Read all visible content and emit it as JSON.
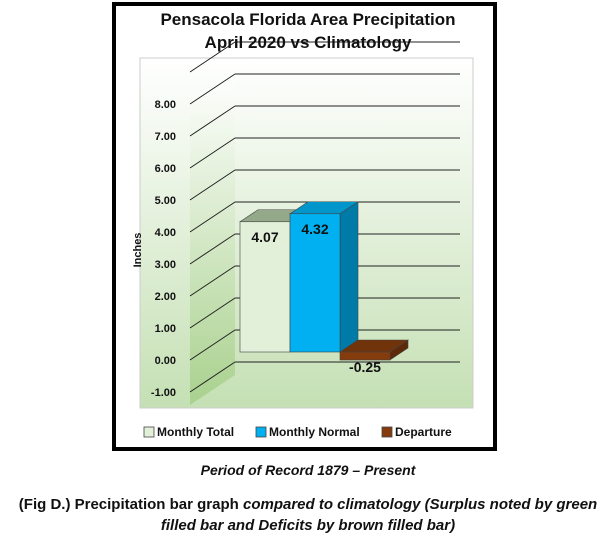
{
  "chart_data": {
    "type": "bar",
    "title_line1": "Pensacola Florida Area Precipitation",
    "title_line2": "April 2020 vs Climatology",
    "ylabel": "Inches",
    "xlabel": "",
    "ylim": [
      -1.0,
      8.0
    ],
    "yticks": [
      "8.00",
      "7.00",
      "6.00",
      "5.00",
      "4.00",
      "3.00",
      "2.00",
      "1.00",
      "0.00",
      "-1.00"
    ],
    "categories": [
      "Monthly Total",
      "Monthly Normal",
      "Departure"
    ],
    "values": [
      4.07,
      4.32,
      -0.25
    ],
    "value_labels": [
      "4.07",
      "4.32",
      "-0.25"
    ],
    "colors": [
      "#e2f0d9",
      "#00b0f0",
      "#843c0c"
    ],
    "legend_position": "bottom",
    "grid": true
  },
  "caption_period": "Period of Record 1879 – Present",
  "caption_fig_bold": "(Fig D.) Precipitation bar graph ",
  "caption_fig_italic": "compared to climatology (Surplus noted by green filled bar and Deficits by brown filled bar)"
}
